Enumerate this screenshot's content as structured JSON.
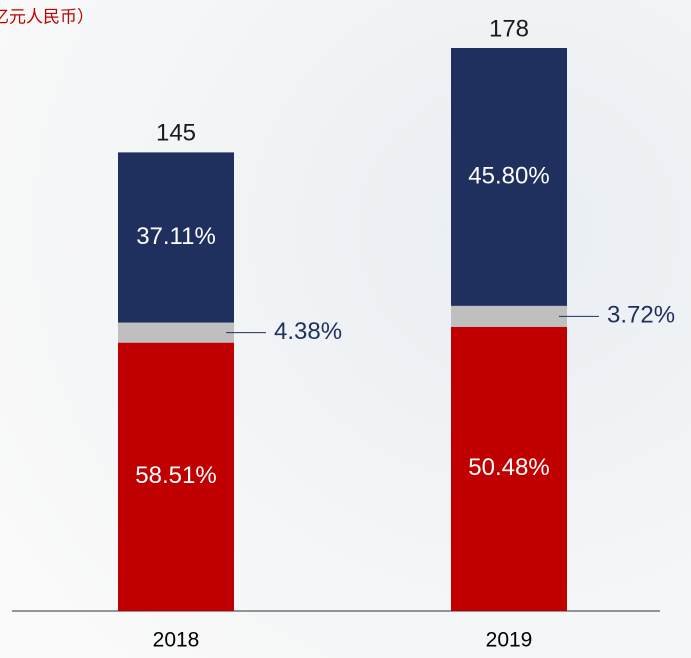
{
  "chart_data": {
    "type": "stacked-bar-percent",
    "title": "亿元人民币）",
    "categories": [
      "2018",
      "2019"
    ],
    "totals": [
      145,
      178
    ],
    "series": [
      {
        "color": "#c00000",
        "values": [
          58.51,
          50.48
        ],
        "value_labels": [
          "58.51%",
          "50.48%"
        ]
      },
      {
        "color": "#bfbfbf",
        "values": [
          4.38,
          3.72
        ],
        "value_labels": [
          "4.38%",
          "3.72%"
        ]
      },
      {
        "color": "#1f305e",
        "values": [
          37.11,
          45.8
        ],
        "value_labels": [
          "37.11%",
          "45.80%"
        ]
      }
    ]
  }
}
